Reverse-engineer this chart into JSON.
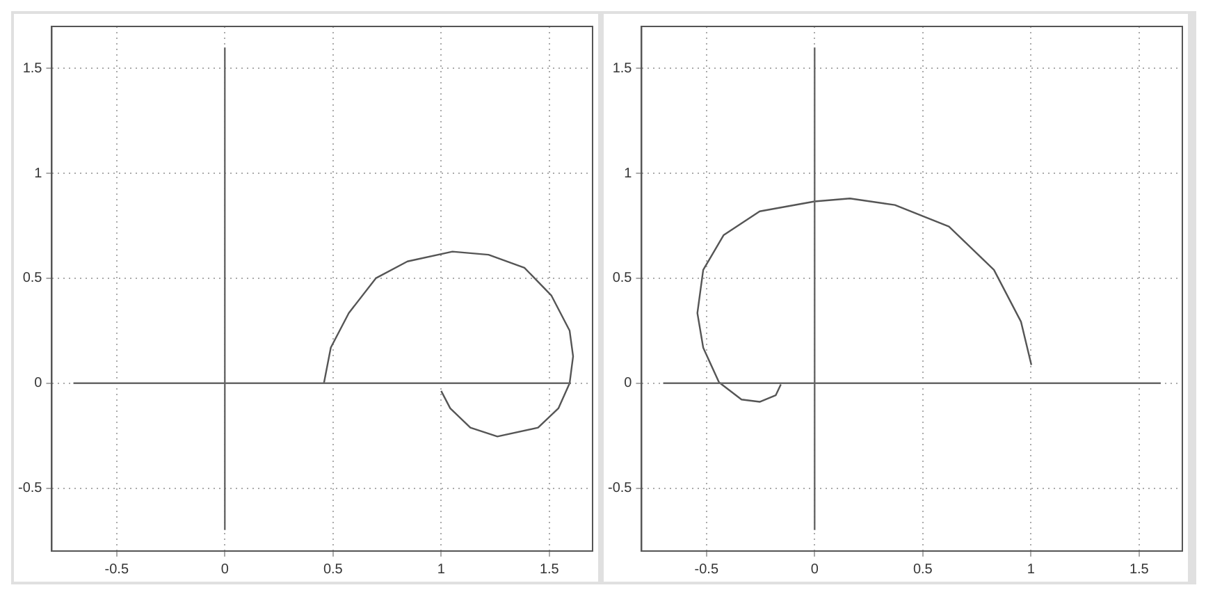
{
  "chart_data": [
    {
      "type": "line",
      "xlim": [
        -0.8,
        1.7
      ],
      "ylim": [
        -0.8,
        1.7
      ],
      "xticks": [
        -0.5,
        0,
        0.5,
        1,
        1.5
      ],
      "yticks": [
        -0.5,
        0,
        0.5,
        1,
        1.5
      ],
      "grid": true,
      "series": [
        {
          "color": "#666666",
          "x": [
            -0.7,
            1.6
          ],
          "values": [
            0,
            0
          ]
        },
        {
          "color": "#666666",
          "x": [
            0,
            0
          ],
          "values": [
            -0.7,
            1.6
          ]
        },
        {
          "color": "#555555",
          "x": [
            0.458,
            0.49,
            0.573,
            0.698,
            0.844,
            1.052,
            1.219,
            1.385,
            1.51,
            1.594,
            1.61,
            1.594,
            1.542,
            1.448,
            1.26,
            1.135,
            1.042,
            1.0
          ],
          "values": [
            0,
            0.17,
            0.334,
            0.5,
            0.58,
            0.627,
            0.612,
            0.55,
            0.417,
            0.25,
            0.128,
            0,
            -0.12,
            -0.212,
            -0.254,
            -0.212,
            -0.12,
            -0.037
          ]
        }
      ]
    },
    {
      "type": "line",
      "xlim": [
        -0.8,
        1.7
      ],
      "ylim": [
        -0.8,
        1.7
      ],
      "xticks": [
        -0.5,
        0,
        0.5,
        1,
        1.5
      ],
      "yticks": [
        -0.5,
        0,
        0.5,
        1,
        1.5
      ],
      "grid": true,
      "series": [
        {
          "color": "#666666",
          "x": [
            -0.7,
            1.6
          ],
          "values": [
            0,
            0
          ]
        },
        {
          "color": "#666666",
          "x": [
            0,
            0
          ],
          "values": [
            -0.7,
            1.6
          ]
        },
        {
          "color": "#555555",
          "x": [
            -0.156,
            -0.18,
            -0.254,
            -0.338,
            -0.442,
            -0.515,
            -0.542,
            -0.515,
            -0.421,
            -0.254,
            0,
            0.163,
            0.371,
            0.621,
            0.829,
            0.954,
            1.002
          ],
          "values": [
            -0.006,
            -0.058,
            -0.089,
            -0.078,
            0.004,
            0.169,
            0.334,
            0.54,
            0.705,
            0.819,
            0.866,
            0.88,
            0.849,
            0.746,
            0.54,
            0.293,
            0.087
          ]
        }
      ]
    }
  ]
}
